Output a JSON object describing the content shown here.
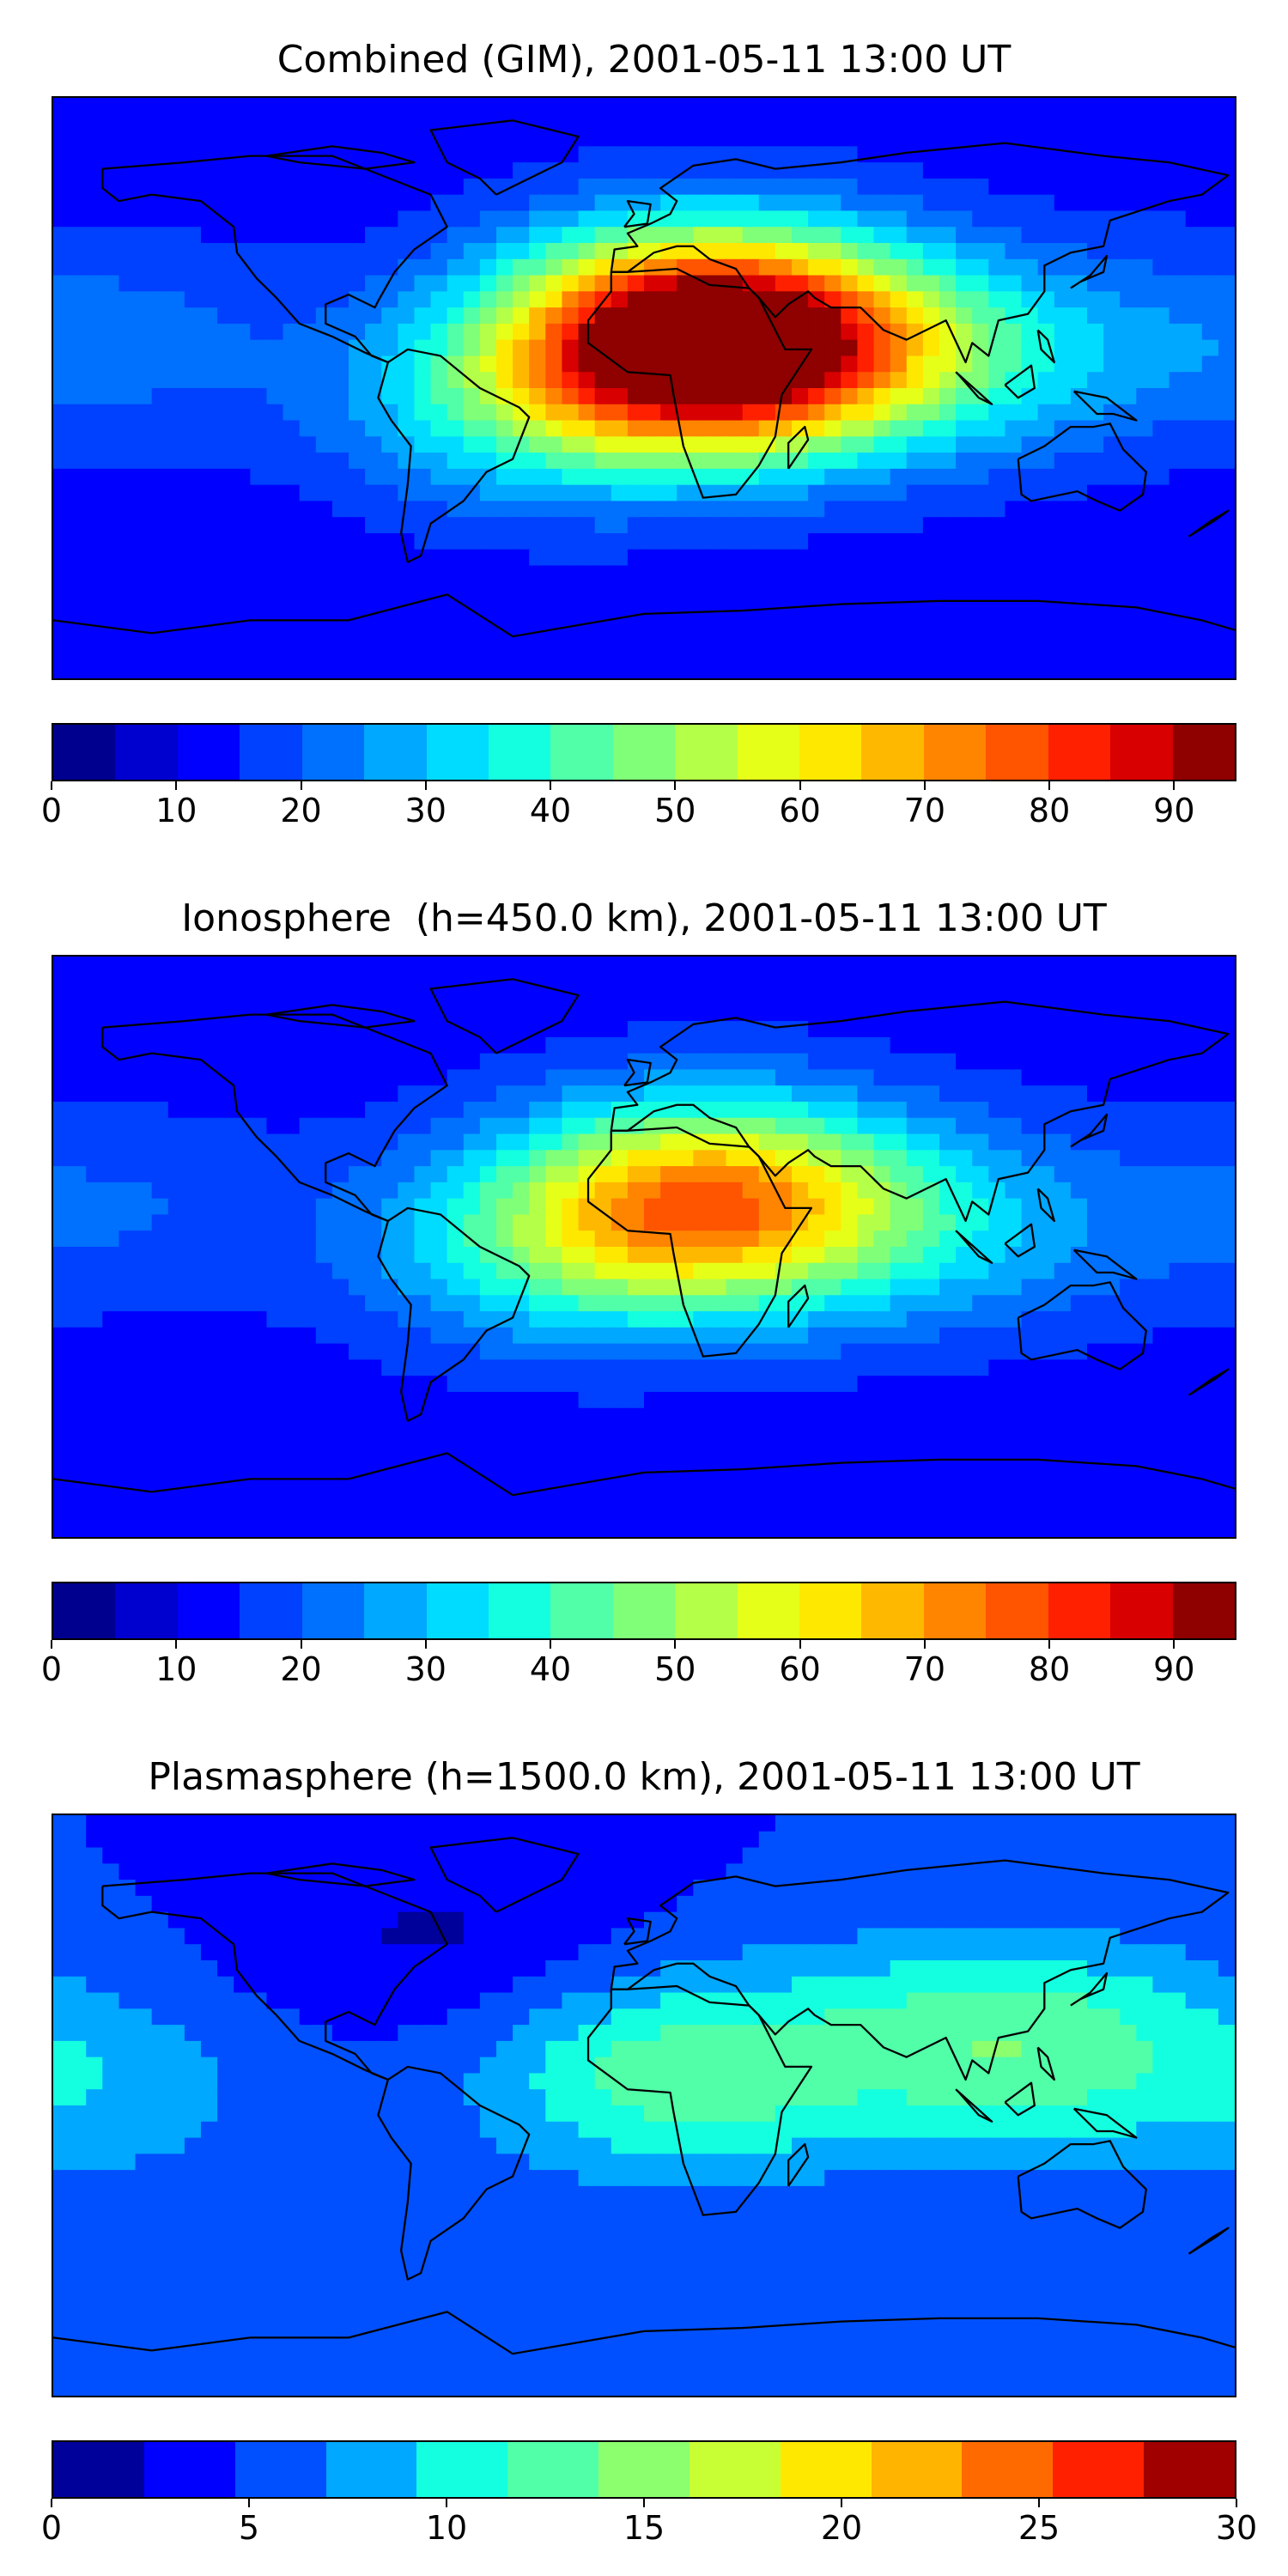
{
  "panels": [
    {
      "title": "Combined (GIM), 2001-05-11 13:00 UT",
      "colorbar": {
        "min": 0,
        "max": 95,
        "step": 5,
        "ticks": [
          "0",
          "10",
          "20",
          "30",
          "40",
          "50",
          "60",
          "70",
          "80",
          "90"
        ],
        "tick_values": [
          0,
          10,
          20,
          30,
          40,
          50,
          60,
          70,
          80,
          90
        ]
      },
      "blobs": [
        {
          "lon": 25,
          "lat": 12,
          "value": 74
        },
        {
          "lon": 15,
          "lat": 22,
          "value": 30
        },
        {
          "lon": -35,
          "lat": -5,
          "value": 22
        },
        {
          "lon": 100,
          "lat": 10,
          "value": 18
        },
        {
          "lon": -165,
          "lat": 15,
          "value": 10
        }
      ],
      "base_value": 12
    },
    {
      "title": "Ionosphere  (h=450.0 km), 2001-05-11 13:00 UT",
      "colorbar": {
        "min": 0,
        "max": 95,
        "step": 5,
        "ticks": [
          "0",
          "10",
          "20",
          "30",
          "40",
          "50",
          "60",
          "70",
          "80",
          "90"
        ],
        "tick_values": [
          0,
          10,
          20,
          30,
          40,
          50,
          60,
          70,
          80,
          90
        ]
      },
      "blobs": [
        {
          "lon": 22,
          "lat": 14,
          "value": 56
        },
        {
          "lon": -30,
          "lat": 0,
          "value": 20
        },
        {
          "lon": 95,
          "lat": 5,
          "value": 14
        },
        {
          "lon": -165,
          "lat": 12,
          "value": 8
        }
      ],
      "base_value": 12
    },
    {
      "title": "Plasmasphere (h=1500.0 km), 2001-05-11 13:00 UT",
      "colorbar": {
        "min": 0,
        "max": 30,
        "step": 2.5,
        "ticks": [
          "0",
          "5",
          "10",
          "15",
          "20",
          "25",
          "30"
        ],
        "tick_values": [
          0,
          5,
          10,
          15,
          20,
          25,
          30
        ]
      },
      "blobs": [
        {
          "lon": 10,
          "lat": 10,
          "value": 9
        },
        {
          "lon": 110,
          "lat": 20,
          "value": 9
        },
        {
          "lon": -170,
          "lat": 5,
          "value": 4
        },
        {
          "lon": -60,
          "lat": 50,
          "value": -3
        }
      ],
      "base_value": 5
    }
  ],
  "colors": {
    "jet_levels_95": [
      "#00008f",
      "#0000cf",
      "#0000ff",
      "#0040ff",
      "#0070ff",
      "#00a8ff",
      "#00dcff",
      "#14ffe0",
      "#50ffa8",
      "#80ff78",
      "#b4ff48",
      "#e6ff18",
      "#ffe800",
      "#ffb800",
      "#ff8400",
      "#ff5400",
      "#ff2000",
      "#d80000",
      "#8f0000"
    ],
    "jet_levels_30": [
      "#00009a",
      "#0000ff",
      "#0050ff",
      "#00a8ff",
      "#14ffe0",
      "#50ffa8",
      "#8cff6e",
      "#c8ff34",
      "#ffe800",
      "#ffb400",
      "#ff6a00",
      "#ff2000",
      "#a00000"
    ]
  }
}
